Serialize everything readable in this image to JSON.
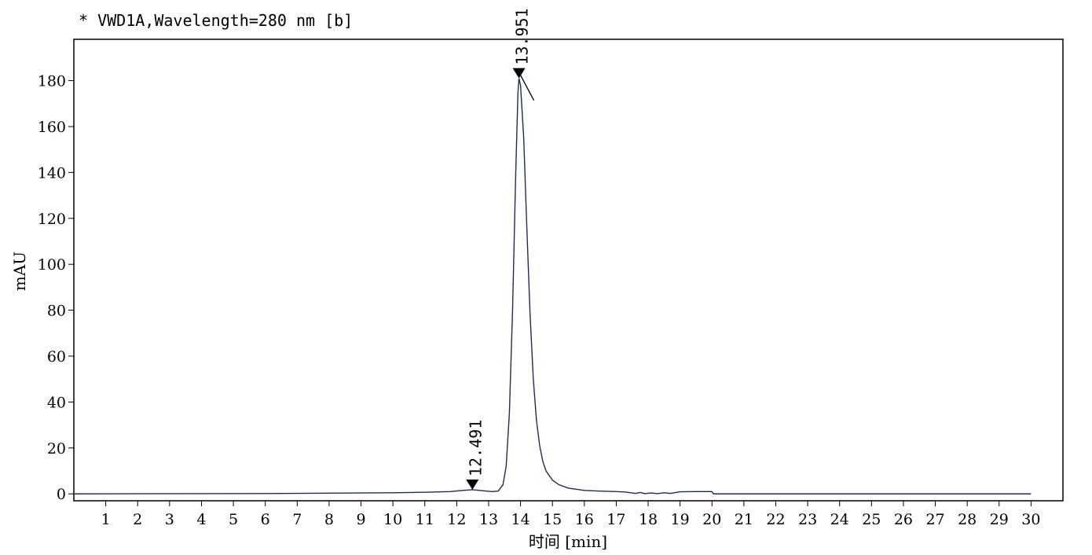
{
  "chart_data": {
    "type": "line",
    "title": "* VWD1A,Wavelength=280 nm [b]",
    "xlabel": "时间 [min]",
    "ylabel": "mAU",
    "xlim": [
      0,
      31
    ],
    "ylim": [
      -3,
      198
    ],
    "x_ticks": [
      1,
      2,
      3,
      4,
      5,
      6,
      7,
      8,
      9,
      10,
      11,
      12,
      13,
      14,
      15,
      16,
      17,
      18,
      19,
      20,
      21,
      22,
      23,
      24,
      25,
      26,
      27,
      28,
      29,
      30
    ],
    "y_ticks": [
      0,
      20,
      40,
      60,
      80,
      100,
      120,
      140,
      160,
      180
    ],
    "series": [
      {
        "color": "#1f2d4d",
        "points": [
          [
            0.0,
            0.0
          ],
          [
            2.0,
            0.05
          ],
          [
            4.0,
            0.1
          ],
          [
            6.0,
            0.15
          ],
          [
            8.0,
            0.3
          ],
          [
            10.0,
            0.5
          ],
          [
            11.0,
            0.7
          ],
          [
            11.8,
            1.0
          ],
          [
            12.2,
            1.5
          ],
          [
            12.5,
            1.8
          ],
          [
            12.8,
            1.4
          ],
          [
            13.1,
            1.0
          ],
          [
            13.3,
            1.2
          ],
          [
            13.45,
            4.0
          ],
          [
            13.55,
            12.0
          ],
          [
            13.65,
            35.0
          ],
          [
            13.75,
            80.0
          ],
          [
            13.85,
            140.0
          ],
          [
            13.92,
            175.0
          ],
          [
            13.951,
            181.0
          ],
          [
            14.0,
            178.0
          ],
          [
            14.1,
            155.0
          ],
          [
            14.2,
            115.0
          ],
          [
            14.3,
            78.0
          ],
          [
            14.4,
            50.0
          ],
          [
            14.5,
            32.0
          ],
          [
            14.6,
            21.0
          ],
          [
            14.7,
            14.0
          ],
          [
            14.8,
            10.0
          ],
          [
            15.0,
            6.0
          ],
          [
            15.2,
            4.0
          ],
          [
            15.5,
            2.5
          ],
          [
            16.0,
            1.5
          ],
          [
            16.5,
            1.2
          ],
          [
            17.0,
            1.0
          ],
          [
            17.3,
            0.8
          ],
          [
            17.6,
            0.2
          ],
          [
            17.75,
            0.6
          ],
          [
            17.9,
            0.1
          ],
          [
            18.1,
            0.4
          ],
          [
            18.3,
            0.1
          ],
          [
            18.5,
            0.5
          ],
          [
            18.7,
            0.2
          ],
          [
            19.0,
            0.9
          ],
          [
            19.5,
            1.0
          ],
          [
            20.0,
            1.0
          ],
          [
            20.05,
            0.0
          ],
          [
            22.0,
            0.0
          ],
          [
            25.0,
            0.0
          ],
          [
            30.0,
            0.0
          ]
        ]
      }
    ],
    "peaks": [
      {
        "rt": 12.491,
        "label": "12.491",
        "height": 1.8
      },
      {
        "rt": 13.951,
        "label": "13.951",
        "height": 181.0
      }
    ]
  }
}
